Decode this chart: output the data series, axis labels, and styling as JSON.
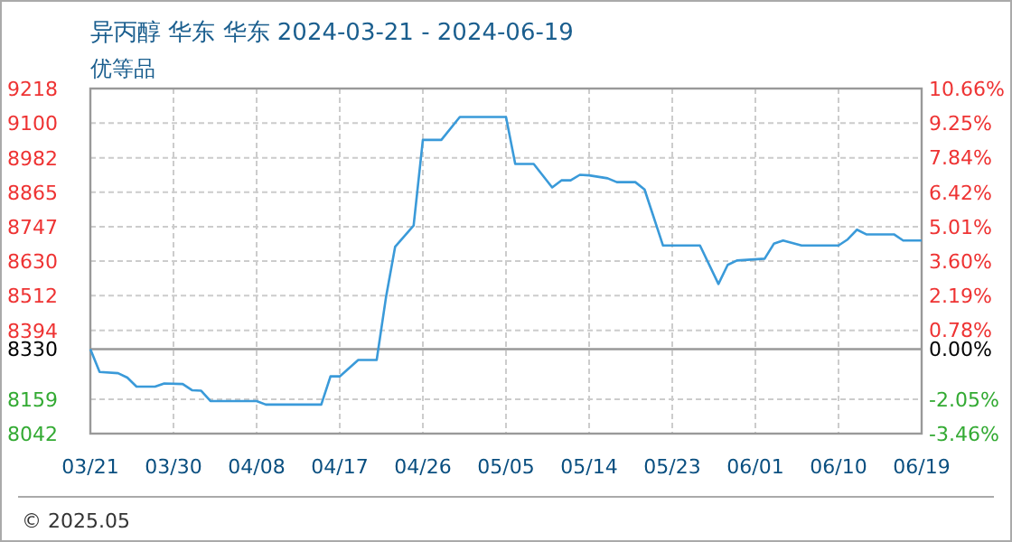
{
  "chart_data": {
    "type": "line",
    "title": "异丙醇 华东 华东 2024-03-21 - 2024-06-19",
    "subtitle": "优等品",
    "x": [
      "2024-03-21",
      "2024-03-22",
      "2024-03-24",
      "2024-03-25",
      "2024-03-26",
      "2024-03-28",
      "2024-03-29",
      "2024-03-31",
      "2024-04-01",
      "2024-04-02",
      "2024-04-03",
      "2024-04-08",
      "2024-04-09",
      "2024-04-15",
      "2024-04-16",
      "2024-04-17",
      "2024-04-19",
      "2024-04-21",
      "2024-04-22",
      "2024-04-23",
      "2024-04-25",
      "2024-04-26",
      "2024-04-28",
      "2024-04-30",
      "2024-05-05",
      "2024-05-06",
      "2024-05-08",
      "2024-05-10",
      "2024-05-11",
      "2024-05-12",
      "2024-05-13",
      "2024-05-14",
      "2024-05-16",
      "2024-05-17",
      "2024-05-19",
      "2024-05-20",
      "2024-05-22",
      "2024-05-26",
      "2024-05-28",
      "2024-05-29",
      "2024-05-30",
      "2024-06-02",
      "2024-06-03",
      "2024-06-04",
      "2024-06-06",
      "2024-06-10",
      "2024-06-11",
      "2024-06-12",
      "2024-06-13",
      "2024-06-16",
      "2024-06-17",
      "2024-06-19"
    ],
    "series": [
      {
        "color": "#3a9ad9",
        "values": [
          8330,
          8252,
          8248,
          8233,
          8202,
          8202,
          8213,
          8211,
          8190,
          8188,
          8153,
          8153,
          8141,
          8141,
          8237,
          8237,
          8293,
          8293,
          8505,
          8679,
          8751,
          9043,
          9043,
          9121,
          9121,
          8961,
          8961,
          8881,
          8905,
          8905,
          8924,
          8922,
          8912,
          8899,
          8899,
          8874,
          8683,
          8683,
          8552,
          8617,
          8632,
          8638,
          8689,
          8700,
          8683,
          8683,
          8704,
          8737,
          8721,
          8721,
          8700,
          8700
        ]
      }
    ],
    "xlim": [
      "2024-03-21",
      "2024-06-19"
    ],
    "xticks": [
      {
        "value": "2024-03-21",
        "label": "03/21"
      },
      {
        "value": "2024-03-30",
        "label": "03/30"
      },
      {
        "value": "2024-04-08",
        "label": "04/08"
      },
      {
        "value": "2024-04-17",
        "label": "04/17"
      },
      {
        "value": "2024-04-26",
        "label": "04/26"
      },
      {
        "value": "2024-05-05",
        "label": "05/05"
      },
      {
        "value": "2024-05-14",
        "label": "05/14"
      },
      {
        "value": "2024-05-23",
        "label": "05/23"
      },
      {
        "value": "2024-06-01",
        "label": "06/01"
      },
      {
        "value": "2024-06-10",
        "label": "06/10"
      },
      {
        "value": "2024-06-19",
        "label": "06/19"
      }
    ],
    "ylim": [
      8042,
      9218
    ],
    "yticks": [
      8042,
      8159,
      8330,
      8394,
      8512,
      8630,
      8747,
      8865,
      8982,
      9100,
      9218
    ],
    "y2lim": [
      -3.46,
      10.66
    ],
    "y2ticks": [
      {
        "value": -3.46,
        "label": "-3.46%"
      },
      {
        "value": -2.05,
        "label": "-2.05%"
      },
      {
        "value": 0,
        "label": "0.00%"
      },
      {
        "value": 0.78,
        "label": "0.78%"
      },
      {
        "value": 2.19,
        "label": "2.19%"
      },
      {
        "value": 3.6,
        "label": "3.60%"
      },
      {
        "value": 5.01,
        "label": "5.01%"
      },
      {
        "value": 6.42,
        "label": "6.42%"
      },
      {
        "value": 7.84,
        "label": "7.84%"
      },
      {
        "value": 9.25,
        "label": "9.25%"
      },
      {
        "value": 10.66,
        "label": "10.66%"
      }
    ],
    "ref_lines": [
      {
        "axis": "y",
        "value": 8330,
        "color": "#999999"
      }
    ],
    "grid": true,
    "marker": "none",
    "line_style": "solid",
    "annotations": [
      "© 2025.05"
    ]
  }
}
